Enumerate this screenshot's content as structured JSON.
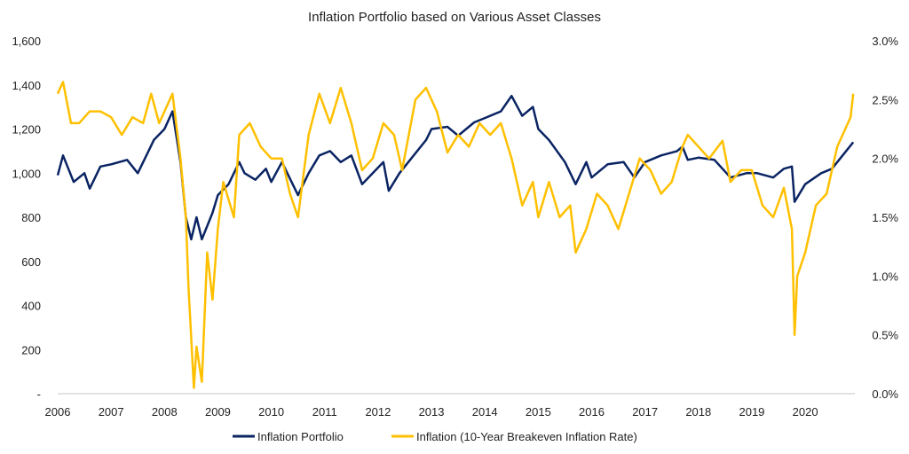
{
  "chart_data": {
    "type": "line",
    "title": "Inflation Portfolio based on Various Asset Classes",
    "x_ticks": [
      "2006",
      "2007",
      "2008",
      "2009",
      "2010",
      "2011",
      "2012",
      "2013",
      "2014",
      "2015",
      "2016",
      "2017",
      "2018",
      "2019",
      "2020"
    ],
    "xlim": [
      2006,
      2020.9
    ],
    "y_left": {
      "ticks": [
        "-",
        "200",
        "400",
        "600",
        "800",
        "1,000",
        "1,200",
        "1,400",
        "1,600"
      ],
      "ylim": [
        0,
        1600
      ]
    },
    "y_right": {
      "ticks": [
        "0.0%",
        "0.5%",
        "1.0%",
        "1.5%",
        "2.0%",
        "2.5%",
        "3.0%"
      ],
      "ylim": [
        0,
        3.0
      ]
    },
    "grid": false,
    "legend_position": "bottom",
    "series": [
      {
        "name": "Inflation Portfolio",
        "axis": "left",
        "color": "#0a2463",
        "x": [
          2006.0,
          2006.1,
          2006.3,
          2006.5,
          2006.6,
          2006.8,
          2007.0,
          2007.3,
          2007.5,
          2007.7,
          2007.8,
          2008.0,
          2008.15,
          2008.3,
          2008.4,
          2008.5,
          2008.6,
          2008.7,
          2008.9,
          2009.0,
          2009.2,
          2009.4,
          2009.5,
          2009.7,
          2009.9,
          2010.0,
          2010.2,
          2010.5,
          2010.7,
          2010.9,
          2011.1,
          2011.3,
          2011.5,
          2011.7,
          2011.9,
          2012.1,
          2012.2,
          2012.4,
          2012.6,
          2012.9,
          2013.0,
          2013.3,
          2013.5,
          2013.8,
          2014.0,
          2014.3,
          2014.5,
          2014.7,
          2014.9,
          2015.0,
          2015.2,
          2015.5,
          2015.7,
          2015.9,
          2016.0,
          2016.3,
          2016.6,
          2016.8,
          2017.0,
          2017.3,
          2017.6,
          2017.7,
          2017.8,
          2018.0,
          2018.3,
          2018.6,
          2018.9,
          2019.1,
          2019.4,
          2019.6,
          2019.75,
          2019.8,
          2020.0,
          2020.3,
          2020.5,
          2020.7,
          2020.9
        ],
        "y": [
          990,
          1080,
          960,
          1000,
          930,
          1030,
          1040,
          1060,
          1000,
          1100,
          1150,
          1200,
          1280,
          1050,
          800,
          700,
          800,
          700,
          820,
          900,
          950,
          1050,
          1000,
          970,
          1020,
          960,
          1050,
          900,
          1000,
          1080,
          1100,
          1050,
          1080,
          950,
          1000,
          1050,
          920,
          1000,
          1060,
          1150,
          1200,
          1210,
          1170,
          1230,
          1250,
          1280,
          1350,
          1260,
          1300,
          1200,
          1150,
          1050,
          950,
          1050,
          980,
          1040,
          1050,
          980,
          1050,
          1080,
          1100,
          1120,
          1060,
          1070,
          1060,
          980,
          1000,
          1000,
          980,
          1020,
          1030,
          870,
          950,
          1000,
          1020,
          1080,
          1140
        ]
      },
      {
        "name": "Inflation (10-Year Breakeven Inflation Rate)",
        "axis": "right",
        "color": "#ffc000",
        "x": [
          2006.0,
          2006.1,
          2006.25,
          2006.4,
          2006.6,
          2006.8,
          2007.0,
          2007.2,
          2007.4,
          2007.6,
          2007.75,
          2007.9,
          2008.05,
          2008.15,
          2008.3,
          2008.4,
          2008.45,
          2008.55,
          2008.6,
          2008.7,
          2008.8,
          2008.9,
          2009.0,
          2009.1,
          2009.3,
          2009.4,
          2009.6,
          2009.8,
          2010.0,
          2010.2,
          2010.35,
          2010.5,
          2010.7,
          2010.9,
          2011.1,
          2011.3,
          2011.5,
          2011.7,
          2011.9,
          2012.1,
          2012.3,
          2012.45,
          2012.7,
          2012.9,
          2013.1,
          2013.3,
          2013.5,
          2013.7,
          2013.9,
          2014.1,
          2014.3,
          2014.5,
          2014.7,
          2014.9,
          2015.0,
          2015.2,
          2015.4,
          2015.6,
          2015.7,
          2015.9,
          2016.1,
          2016.3,
          2016.5,
          2016.7,
          2016.9,
          2017.1,
          2017.3,
          2017.5,
          2017.7,
          2017.8,
          2018.0,
          2018.2,
          2018.45,
          2018.6,
          2018.8,
          2019.0,
          2019.2,
          2019.4,
          2019.6,
          2019.75,
          2019.8,
          2019.85,
          2020.0,
          2020.2,
          2020.4,
          2020.5,
          2020.6,
          2020.7,
          2020.85,
          2020.9
        ],
        "y": [
          2.55,
          2.65,
          2.3,
          2.3,
          2.4,
          2.4,
          2.35,
          2.2,
          2.35,
          2.3,
          2.55,
          2.3,
          2.45,
          2.55,
          2.0,
          1.5,
          0.9,
          0.05,
          0.4,
          0.1,
          1.2,
          0.8,
          1.4,
          1.8,
          1.5,
          2.2,
          2.3,
          2.1,
          2.0,
          2.0,
          1.7,
          1.5,
          2.2,
          2.55,
          2.3,
          2.6,
          2.3,
          1.9,
          2.0,
          2.3,
          2.2,
          1.9,
          2.5,
          2.6,
          2.4,
          2.05,
          2.2,
          2.1,
          2.3,
          2.2,
          2.3,
          2.0,
          1.6,
          1.8,
          1.5,
          1.8,
          1.5,
          1.6,
          1.2,
          1.4,
          1.7,
          1.6,
          1.4,
          1.7,
          2.0,
          1.9,
          1.7,
          1.8,
          2.1,
          2.2,
          2.1,
          2.0,
          2.15,
          1.8,
          1.9,
          1.9,
          1.6,
          1.5,
          1.75,
          1.4,
          0.5,
          1.0,
          1.2,
          1.6,
          1.7,
          1.9,
          2.1,
          2.2,
          2.35,
          2.55
        ]
      }
    ]
  }
}
